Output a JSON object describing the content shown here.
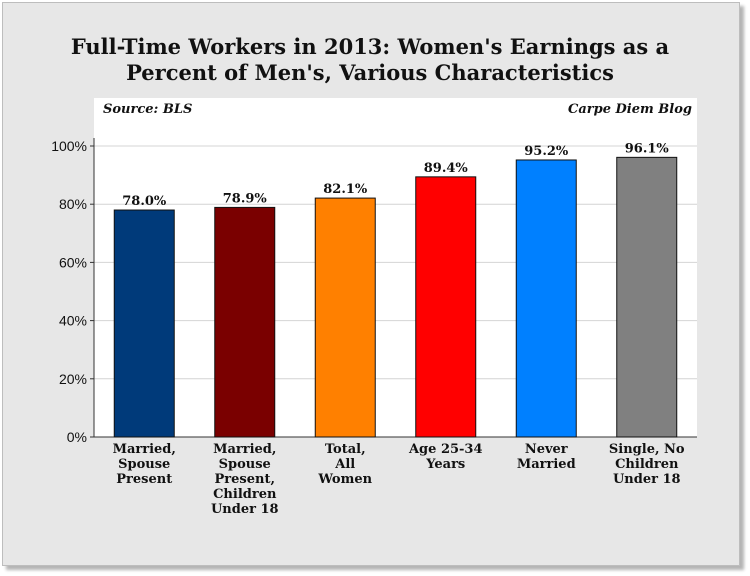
{
  "title_line1": "Full-Time Workers in 2013: Women's Earnings as a",
  "title_line2": "Percent of Men's, Various Characteristics",
  "source": "Source: BLS",
  "blog": "Carpe Diem Blog",
  "chart_data": {
    "type": "bar",
    "title": "Full-Time Workers in 2013: Women's Earnings as a Percent of Men's, Various Characteristics",
    "categories": [
      "Married, Spouse Present",
      "Married, Spouse Present, Children Under 18",
      "Total, All Women",
      "Age 25-34 Years",
      "Never Married",
      "Single, No Children Under 18"
    ],
    "category_lines": [
      [
        "Married,",
        "Spouse",
        "Present"
      ],
      [
        "Married,",
        "Spouse",
        "Present,",
        "Children",
        "Under 18"
      ],
      [
        "Total,",
        "All",
        "Women"
      ],
      [
        "Age 25-34",
        "Years"
      ],
      [
        "Never",
        "Married"
      ],
      [
        "Single, No",
        "Children",
        "Under 18"
      ]
    ],
    "values": [
      78.0,
      78.9,
      82.1,
      89.4,
      95.2,
      96.1
    ],
    "value_labels": [
      "78.0%",
      "78.9%",
      "82.1%",
      "89.4%",
      "95.2%",
      "96.1%"
    ],
    "colors": [
      "#003a7a",
      "#7a0000",
      "#ff8000",
      "#ff0000",
      "#0080ff",
      "#808080"
    ],
    "ylim": [
      0,
      100
    ],
    "yticks": [
      0,
      20,
      40,
      60,
      80,
      100
    ],
    "ytick_labels": [
      "0%",
      "20%",
      "40%",
      "60%",
      "80%",
      "100%"
    ],
    "grid": true,
    "xlabel": "",
    "ylabel": ""
  }
}
